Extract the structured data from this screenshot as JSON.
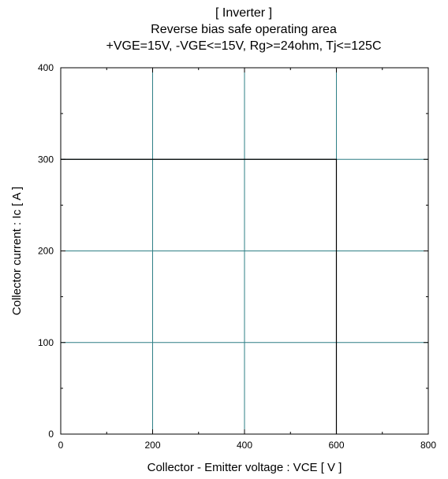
{
  "chart_data": {
    "type": "line",
    "title_lines": [
      "[ Inverter ]",
      "Reverse bias safe operating area",
      "+VGE=15V, -VGE<=15V, Rg>=24ohm, Tj<=125C"
    ],
    "xlabel": "Collector - Emitter voltage  :  VCE  [ V ]",
    "ylabel": "Collector current  : Ic  [ A ]",
    "xlim": [
      0,
      800
    ],
    "ylim": [
      0,
      400
    ],
    "x_ticks": [
      0,
      200,
      400,
      600,
      800
    ],
    "y_ticks": [
      0,
      100,
      200,
      300,
      400
    ],
    "x_tick_labels": [
      "0",
      "200",
      "400",
      "600",
      "800"
    ],
    "y_tick_labels": [
      "0",
      "100",
      "200",
      "300",
      "400"
    ],
    "grid": true,
    "grid_color": "#2e7f86",
    "series": [
      {
        "color": "#000000",
        "points": [
          [
            0,
            300
          ],
          [
            600,
            300
          ],
          [
            600,
            0
          ]
        ]
      }
    ]
  }
}
